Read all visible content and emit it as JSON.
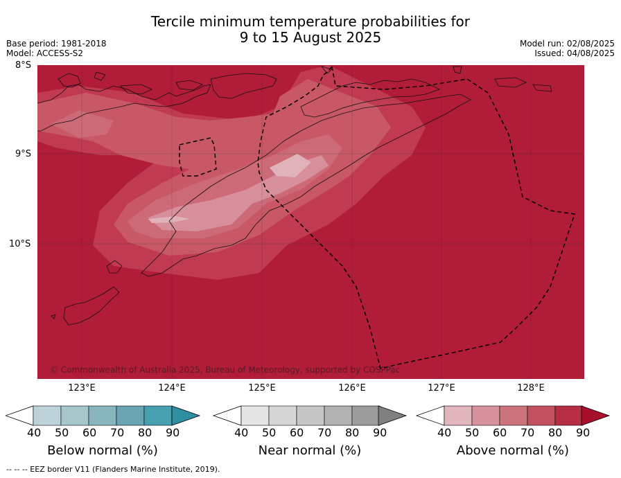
{
  "title_line1": "Tercile minimum temperature probabilities for",
  "title_line2": "9 to 15 August 2025",
  "base_period": "Base period: 1981-2018",
  "model": "Model: ACCESS-S2",
  "model_run": "Model run: 02/08/2025",
  "issued": "Issued: 04/08/2025",
  "lat_labels": [
    "8°S",
    "9°S",
    "10°S"
  ],
  "lon_labels": [
    "123°E",
    "124°E",
    "125°E",
    "126°E",
    "127°E",
    "128°E"
  ],
  "credit": "© Commonwealth of Australia 2025, Bureau of Meteorology, supported by COSPPac",
  "colorbars": {
    "below": {
      "title": "Below normal (%)",
      "ticks": [
        "40",
        "50",
        "60",
        "70",
        "80",
        "90"
      ],
      "colors": [
        "#bdd3d9",
        "#a6c6cc",
        "#89b5bf",
        "#6aa4b0",
        "#47a0ae",
        "#2f8fa0"
      ]
    },
    "near": {
      "title": "Near normal (%)",
      "ticks": [
        "40",
        "50",
        "60",
        "70",
        "80",
        "90"
      ],
      "colors": [
        "#e5e5e5",
        "#d6d6d6",
        "#c6c6c6",
        "#b2b2b2",
        "#9d9d9d",
        "#808080"
      ]
    },
    "above": {
      "title": "Above normal (%)",
      "ticks": [
        "40",
        "50",
        "60",
        "70",
        "80",
        "90"
      ],
      "colors": [
        "#e1b6bd",
        "#d7939d",
        "#cc737e",
        "#c2505f",
        "#b72e44",
        "#a8102e"
      ]
    }
  },
  "footnote": "--  --  -- EEZ border V11 (Flanders Marine Institute, 2019).",
  "map_colors": {
    "background": "#b11c38",
    "p80": "#c03b52",
    "p70": "#c95867",
    "p60": "#cc6a78",
    "p50": "#d78f9b",
    "p40": "#e0b2ba"
  }
}
